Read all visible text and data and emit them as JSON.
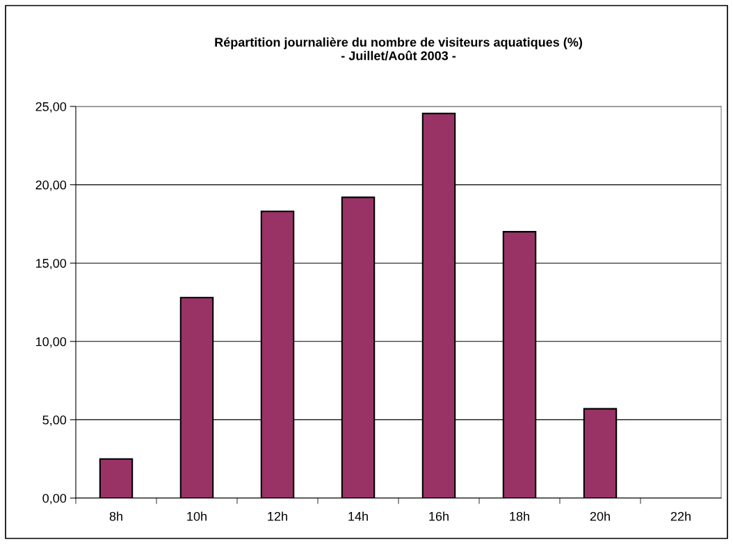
{
  "chart_data": {
    "type": "bar",
    "title": "Répartition journalière du nombre de visiteurs aquatiques (%)\n- Juillet/Août 2003 -",
    "categories": [
      "8h",
      "10h",
      "12h",
      "14h",
      "16h",
      "18h",
      "20h",
      "22h"
    ],
    "values": [
      2.5,
      12.8,
      18.3,
      19.2,
      24.55,
      17.0,
      5.7,
      null
    ],
    "color": "#993366",
    "ylim": [
      0,
      25
    ],
    "yticks": [
      {
        "value": 0,
        "label": "0,00"
      },
      {
        "value": 5,
        "label": "5,00"
      },
      {
        "value": 10,
        "label": "10,00"
      },
      {
        "value": 15,
        "label": "15,00"
      },
      {
        "value": 20,
        "label": "20,00"
      },
      {
        "value": 25,
        "label": "25,00"
      }
    ],
    "grid": "y"
  }
}
